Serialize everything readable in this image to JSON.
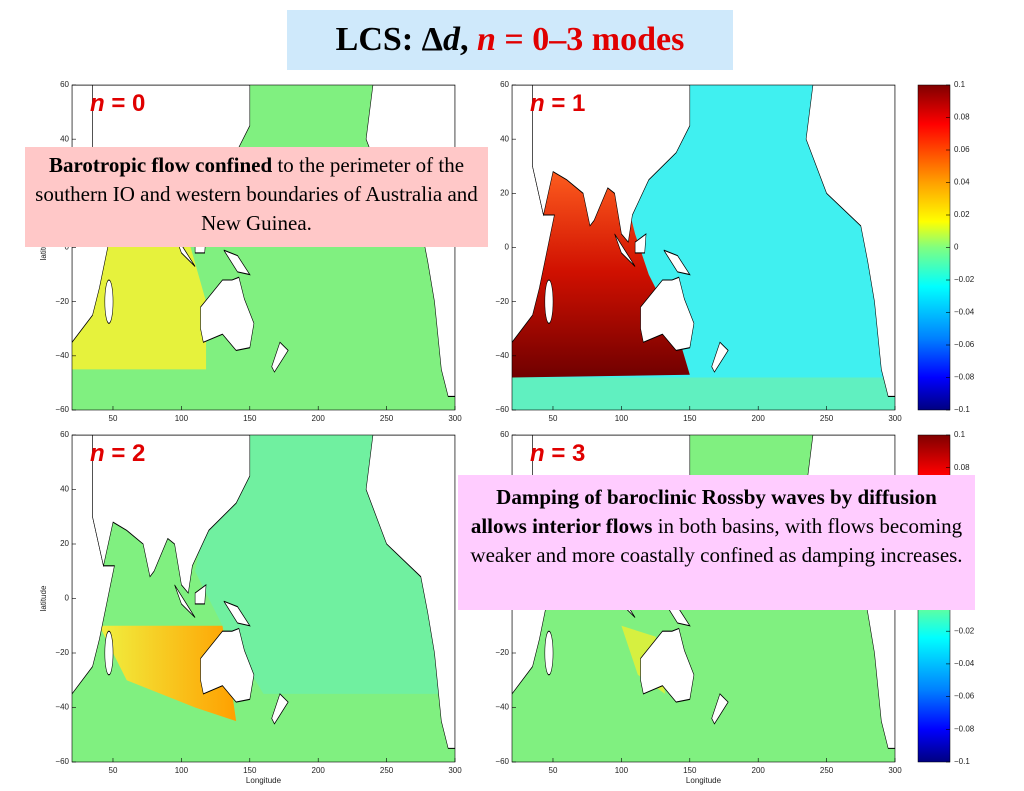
{
  "title": {
    "prefix": "LCS: Δ",
    "variable": "d",
    "separator": ", ",
    "mode_symbol": "n",
    "rest": " = 0–3 modes"
  },
  "panels": [
    {
      "symbol": "n",
      "label": " = 0"
    },
    {
      "symbol": "n",
      "label": " = 1"
    },
    {
      "symbol": "n",
      "label": " = 2"
    },
    {
      "symbol": "n",
      "label": " = 3"
    }
  ],
  "axes": {
    "y_label": "latitude",
    "x_label": "Longitude",
    "x_ticks": [
      "50",
      "100",
      "150",
      "200",
      "250",
      "300"
    ],
    "y_ticks": [
      "60",
      "40",
      "20",
      "0",
      "−20",
      "−40",
      "−60"
    ]
  },
  "colorbar": {
    "ticks": [
      "0.1",
      "0.08",
      "0.06",
      "0.04",
      "0.02",
      "0",
      "−0.02",
      "−0.04",
      "−0.06",
      "−0.08",
      "−0.1"
    ]
  },
  "notes": [
    {
      "bold": "Barotropic flow confined",
      "text": " to the perimeter of the southern IO and western boundaries of Australia and New Guinea."
    },
    {
      "bold": "Damping of baroclinic Rossby waves by diffusion allows interior flows",
      "text": " in both basins, with flows becoming weaker and more coastally confined as damping increases."
    }
  ]
}
